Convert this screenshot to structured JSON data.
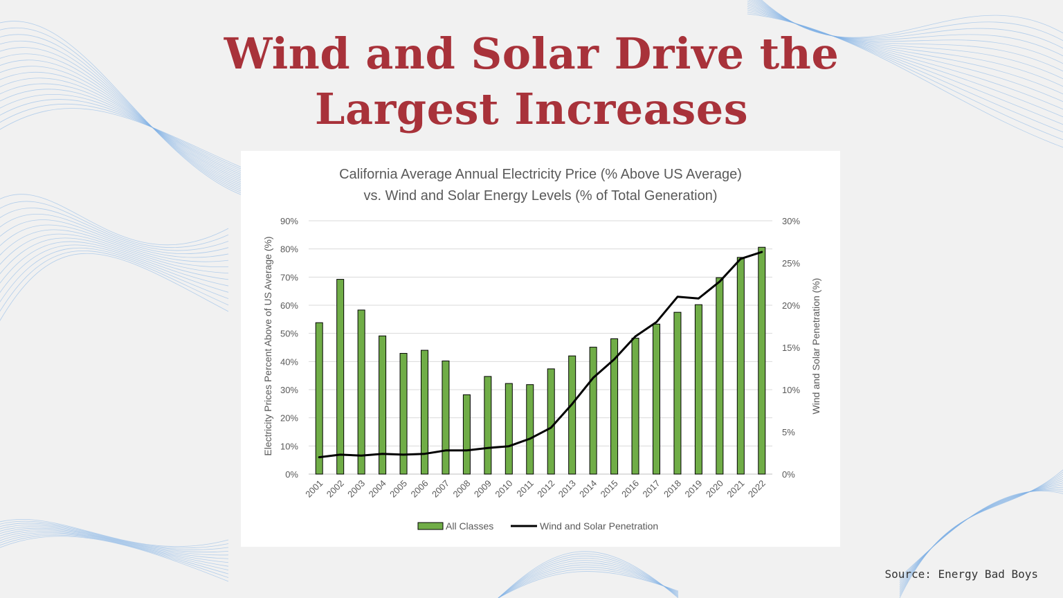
{
  "slide": {
    "title_line1": "Wind and Solar Drive the",
    "title_line2": "Largest Increases",
    "title_color": "#a8323a",
    "source": "Source: Energy Bad Boys",
    "wave_color": "#7fb0e6"
  },
  "chart_data": {
    "type": "bar",
    "title_line1": "California Average Annual Electricity Price (% Above US Average)",
    "title_line2": "vs. Wind and Solar Energy Levels (% of Total Generation)",
    "ylabel_left": "Electricity Prices Percent Above of US Average (%)",
    "ylabel_right": "Wind and Solar Penetration (%)",
    "categories": [
      "2001",
      "2002",
      "2003",
      "2004",
      "2005",
      "2006",
      "2007",
      "2008",
      "2009",
      "2010",
      "2011",
      "2012",
      "2013",
      "2014",
      "2015",
      "2016",
      "2017",
      "2018",
      "2019",
      "2020",
      "2021",
      "2022"
    ],
    "y_left": {
      "min": 0,
      "max": 90,
      "step": 10,
      "ticks": [
        "0%",
        "10%",
        "20%",
        "30%",
        "40%",
        "50%",
        "60%",
        "70%",
        "80%",
        "90%"
      ]
    },
    "y_right": {
      "min": 0,
      "max": 30,
      "step": 5,
      "ticks": [
        "0%",
        "5%",
        "10%",
        "15%",
        "20%",
        "25%",
        "30%"
      ]
    },
    "grid": true,
    "legend_position": "bottom",
    "series": [
      {
        "name": "All Classes",
        "kind": "bar",
        "axis": "left",
        "color": "#70ad47",
        "values": [
          53.8,
          69.2,
          58.3,
          49.1,
          42.9,
          44.0,
          40.2,
          28.2,
          34.7,
          32.2,
          31.8,
          37.4,
          42.0,
          45.1,
          48.1,
          48.3,
          53.3,
          57.5,
          60.2,
          69.8,
          77.0,
          80.6
        ]
      },
      {
        "name": "Wind and Solar Penetration",
        "kind": "line",
        "axis": "right",
        "color": "#000000",
        "values": [
          2.0,
          2.3,
          2.2,
          2.4,
          2.3,
          2.4,
          2.8,
          2.8,
          3.1,
          3.3,
          4.2,
          5.5,
          8.3,
          11.4,
          13.6,
          16.3,
          18.0,
          21.0,
          20.8,
          22.8,
          25.5,
          26.3
        ]
      }
    ]
  }
}
